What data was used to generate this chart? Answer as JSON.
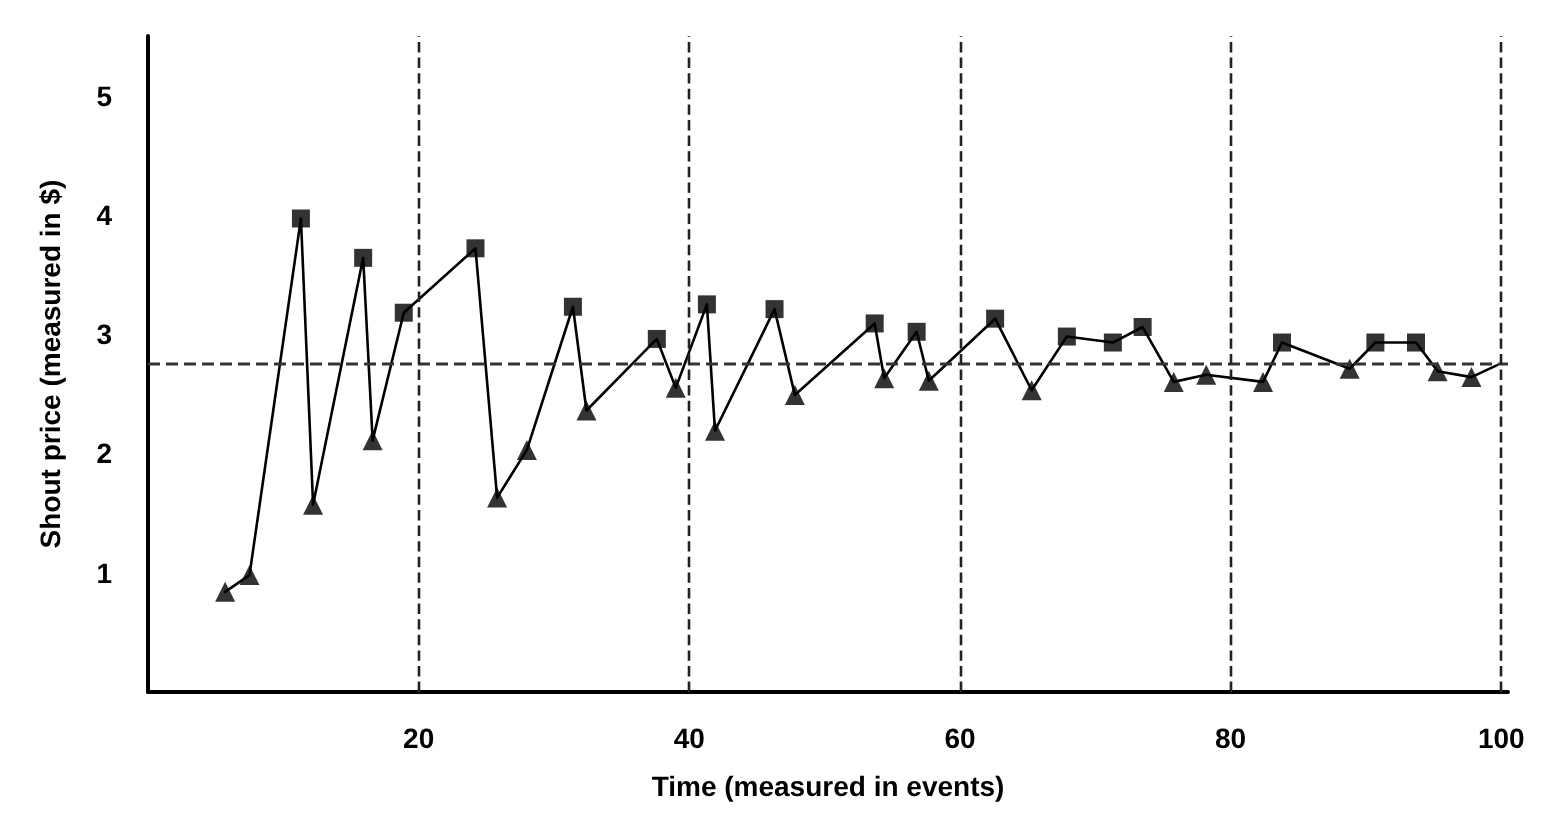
{
  "chart_data": {
    "type": "line",
    "xlabel": "Time (measured in events)",
    "ylabel": "Shout price (measured in $)",
    "xlim": [
      0,
      100.5
    ],
    "ylim": [
      0,
      5.5
    ],
    "xticks": [
      20,
      40,
      60,
      80,
      100
    ],
    "yticks": [
      1,
      2,
      3,
      4,
      5
    ],
    "grid": false,
    "series": [
      {
        "type": "line",
        "marker": "none",
        "line_style": "solid",
        "color": "#000000",
        "x": [
          5.7,
          7.5,
          11.3,
          12.2,
          15.9,
          16.6,
          18.9,
          24.2,
          25.8,
          28.0,
          31.4,
          32.4,
          37.6,
          39.0,
          41.3,
          41.9,
          46.3,
          47.8,
          53.7,
          54.4,
          56.8,
          57.7,
          62.6,
          65.3,
          67.9,
          71.3,
          73.5,
          75.8,
          78.2,
          82.4,
          83.8,
          88.8,
          90.7,
          93.7,
          95.3,
          97.8,
          99.7
        ],
        "values": [
          0.84,
          0.98,
          3.97,
          1.57,
          3.64,
          2.11,
          3.18,
          3.72,
          1.63,
          2.03,
          3.23,
          2.36,
          2.96,
          2.55,
          3.25,
          2.19,
          3.21,
          2.49,
          3.09,
          2.63,
          3.02,
          2.61,
          3.13,
          2.53,
          2.98,
          2.93,
          3.06,
          2.6,
          2.66,
          2.6,
          2.93,
          2.71,
          2.93,
          2.93,
          2.69,
          2.64,
          2.74
        ]
      },
      {
        "type": "scatter",
        "marker": "square",
        "color": "#000000",
        "x": [
          11.3,
          15.9,
          18.9,
          24.2,
          31.4,
          37.6,
          41.3,
          46.3,
          53.7,
          56.8,
          62.6,
          67.9,
          71.3,
          73.5,
          83.8,
          90.7,
          93.7
        ],
        "values": [
          3.97,
          3.64,
          3.18,
          3.72,
          3.23,
          2.96,
          3.25,
          3.21,
          3.09,
          3.02,
          3.13,
          2.98,
          2.93,
          3.06,
          2.93,
          2.93,
          2.93
        ]
      },
      {
        "type": "scatter",
        "marker": "triangle",
        "color": "#000000",
        "x": [
          5.7,
          7.5,
          12.2,
          16.6,
          25.8,
          28.0,
          32.4,
          39.0,
          41.9,
          47.8,
          54.4,
          57.7,
          65.3,
          75.8,
          78.2,
          82.4,
          88.8,
          95.3,
          97.8
        ],
        "values": [
          0.84,
          0.98,
          1.57,
          2.11,
          1.63,
          2.03,
          2.36,
          2.55,
          2.19,
          2.49,
          2.63,
          2.61,
          2.53,
          2.6,
          2.66,
          2.6,
          2.71,
          2.69,
          2.64
        ]
      }
    ],
    "ref_lines": [
      {
        "axis": "y",
        "value": 2.75,
        "line_style": "dashed",
        "color": "#333333"
      },
      {
        "axis": "x",
        "value": 20,
        "line_style": "dashed",
        "color": "#222222"
      },
      {
        "axis": "x",
        "value": 40,
        "line_style": "dashed",
        "color": "#222222"
      },
      {
        "axis": "x",
        "value": 60,
        "line_style": "dashed",
        "color": "#222222"
      },
      {
        "axis": "x",
        "value": 80,
        "line_style": "dashed",
        "color": "#222222"
      },
      {
        "axis": "x",
        "value": 100,
        "line_style": "dashed",
        "color": "#222222"
      }
    ]
  }
}
